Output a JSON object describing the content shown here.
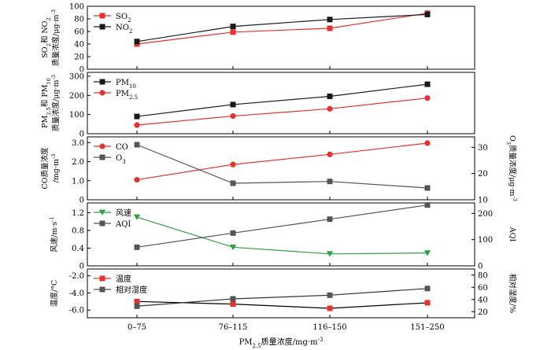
{
  "chart_data": {
    "type": "line",
    "categories": [
      "0–75",
      "76–115",
      "116–150",
      "151–250"
    ],
    "xlabel": {
      "main": "PM",
      "sub": "2.5",
      "rest": "质量浓度/mg·m",
      "sup": "-3"
    },
    "panels": [
      {
        "ylabel_lines": [
          [
            {
              "t": "SO"
            },
            {
              "t": "2",
              "k": "sub"
            },
            {
              "t": "和 NO"
            },
            {
              "t": "2",
              "k": "sub"
            }
          ],
          [
            {
              "t": "质量浓度/μg·m"
            },
            {
              "t": "-3",
              "k": "sup"
            }
          ]
        ],
        "ylim": [
          0,
          100
        ],
        "yticks": [
          0,
          20,
          40,
          60,
          80,
          100
        ],
        "ytick_labels": [
          "0",
          "20",
          "40",
          "60",
          "80",
          "100"
        ],
        "legend": [
          {
            "parts": [
              {
                "t": "SO"
              },
              {
                "t": "2",
                "k": "sub"
              }
            ],
            "color": "#e8312e",
            "marker": "square"
          },
          {
            "parts": [
              {
                "t": "NO"
              },
              {
                "t": "2",
                "k": "sub"
              }
            ],
            "color": "#1a1a1a",
            "marker": "square"
          }
        ],
        "series": [
          {
            "values": [
              40,
              59,
              65,
              89
            ],
            "color": "#e8312e",
            "marker": "square",
            "axis": "left"
          },
          {
            "values": [
              44,
              68,
              79,
              87
            ],
            "color": "#1a1a1a",
            "marker": "square",
            "axis": "left"
          }
        ]
      },
      {
        "ylabel_lines": [
          [
            {
              "t": "PM"
            },
            {
              "t": "2.5",
              "k": "sub"
            },
            {
              "t": "和 PM"
            },
            {
              "t": "10",
              "k": "sub"
            }
          ],
          [
            {
              "t": "质量浓度/μg·m"
            },
            {
              "t": "-3",
              "k": "sup"
            }
          ]
        ],
        "ylim": [
          0,
          320
        ],
        "yticks": [
          0,
          100,
          200,
          300
        ],
        "ytick_labels": [
          "0",
          "100",
          "200",
          "300"
        ],
        "legend": [
          {
            "parts": [
              {
                "t": "PM"
              },
              {
                "t": "10",
                "k": "sub"
              }
            ],
            "color": "#1a1a1a",
            "marker": "square"
          },
          {
            "parts": [
              {
                "t": "PM"
              },
              {
                "t": "2.5",
                "k": "sub"
              }
            ],
            "color": "#e8312e",
            "marker": "circle"
          }
        ],
        "series": [
          {
            "values": [
              90,
              152,
              195,
              258
            ],
            "color": "#1a1a1a",
            "marker": "square",
            "axis": "left"
          },
          {
            "values": [
              45,
              92,
              130,
              186
            ],
            "color": "#e8312e",
            "marker": "circle",
            "axis": "left"
          }
        ]
      },
      {
        "ylabel_lines": [
          [
            {
              "t": "CO质量浓度"
            }
          ],
          [
            {
              "t": "/mg·m"
            },
            {
              "t": "-3",
              "k": "sup"
            }
          ]
        ],
        "ylabel_right": [
          {
            "t": "O"
          },
          {
            "t": "3",
            "k": "sub"
          },
          {
            "t": "质量浓度/μg·m"
          },
          {
            "t": "-3",
            "k": "sup"
          }
        ],
        "ylim": [
          0,
          3.3
        ],
        "yticks": [
          0,
          1.0,
          2.0,
          3.0
        ],
        "ytick_labels": [
          "0",
          "1.0",
          "2.0",
          "3.0"
        ],
        "ylim_right": [
          10,
          34
        ],
        "yticks_right": [
          10,
          20,
          30
        ],
        "ytick_labels_right": [
          "10",
          "20",
          "30"
        ],
        "legend": [
          {
            "parts": [
              {
                "t": "CO"
              }
            ],
            "color": "#e8312e",
            "marker": "circle"
          },
          {
            "parts": [
              {
                "t": "O"
              },
              {
                "t": "3",
                "k": "sub"
              }
            ],
            "color": "#555555",
            "marker": "square"
          }
        ],
        "series": [
          {
            "values": [
              1.05,
              1.85,
              2.38,
              2.97
            ],
            "color": "#e8312e",
            "marker": "circle",
            "axis": "left"
          },
          {
            "values": [
              31,
              16.3,
              17.0,
              14.5
            ],
            "color": "#555555",
            "marker": "square",
            "axis": "right"
          }
        ]
      },
      {
        "ylabel_lines": [
          [
            {
              "t": "风速/m·s"
            },
            {
              "t": "-1",
              "k": "sup"
            }
          ]
        ],
        "ylabel_right": [
          {
            "t": "AQI"
          }
        ],
        "ylim": [
          0,
          1.42
        ],
        "yticks": [
          0,
          0.4,
          0.8,
          1.2
        ],
        "ytick_labels": [
          "0",
          "0.4",
          "0.8",
          "1.2"
        ],
        "ylim_right": [
          0,
          240
        ],
        "yticks_right": [
          0,
          100,
          200
        ],
        "ytick_labels_right": [
          "0",
          "100",
          "200"
        ],
        "legend": [
          {
            "parts": [
              {
                "t": "风速"
              }
            ],
            "color": "#2ea043",
            "marker": "triangle-down"
          },
          {
            "parts": [
              {
                "t": "AQI"
              }
            ],
            "color": "#555555",
            "marker": "square"
          }
        ],
        "series": [
          {
            "values": [
              1.1,
              0.42,
              0.27,
              0.29
            ],
            "color": "#2ea043",
            "marker": "triangle-down",
            "axis": "left"
          },
          {
            "values": [
              71,
              125,
              178,
              232
            ],
            "color": "#555555",
            "marker": "square",
            "axis": "right"
          }
        ]
      },
      {
        "ylabel_lines": [
          [
            {
              "t": "温度/°C"
            }
          ]
        ],
        "ylabel_right": [
          {
            "t": "相对湿度/%"
          }
        ],
        "ylim": [
          -6.9,
          -1.2
        ],
        "yticks": [
          -6.0,
          -4.0,
          -2.0
        ],
        "ytick_labels": [
          "-6.0",
          "-4.0",
          "-2.0"
        ],
        "ylim_right": [
          10,
          90
        ],
        "yticks_right": [
          20,
          40,
          60,
          80
        ],
        "ytick_labels_right": [
          "20",
          "40",
          "60",
          "80"
        ],
        "legend": [
          {
            "parts": [
              {
                "t": "温度"
              }
            ],
            "color": "#e8312e",
            "marker": "square"
          },
          {
            "parts": [
              {
                "t": "相对湿度"
              }
            ],
            "color": "#555555",
            "marker": "square"
          }
        ],
        "series": [
          {
            "values": [
              -5.0,
              -5.3,
              -5.8,
              -5.15
            ],
            "color": "#e8312e",
            "marker": "square",
            "axis": "left"
          },
          {
            "values": [
              29,
              41,
              47,
              58
            ],
            "color": "#555555",
            "marker": "square",
            "axis": "right"
          }
        ],
        "line_color_override": [
          "#000000",
          "#333333"
        ]
      }
    ]
  }
}
